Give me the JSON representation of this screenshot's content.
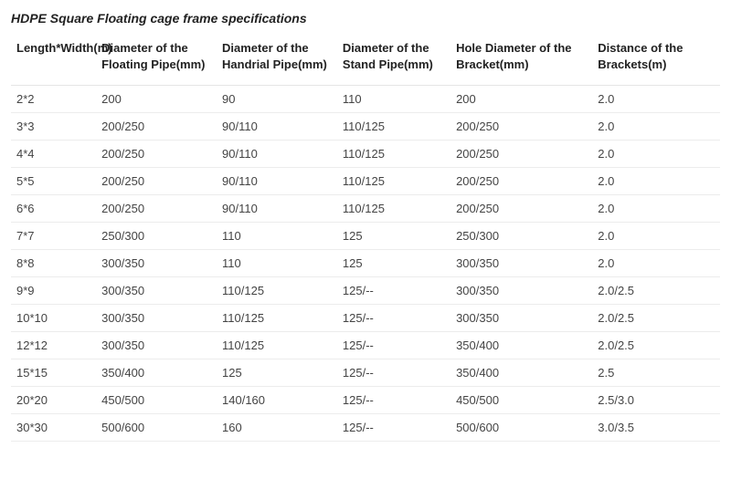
{
  "title": "HDPE Square Floating cage frame specifications",
  "table": {
    "type": "table",
    "background_color": "#ffffff",
    "grid_color": "#ececec",
    "header_text_color": "#222222",
    "cell_text_color": "#444444",
    "font_size_pt": 10,
    "header_font_weight": "600",
    "columns": [
      {
        "label": "Length*Width(m)",
        "width_pct": 12,
        "align": "left"
      },
      {
        "label": "Diameter of the Floating Pipe(mm)",
        "width_pct": 17,
        "align": "left"
      },
      {
        "label": "Diameter of the Handrial Pipe(mm)",
        "width_pct": 17,
        "align": "left"
      },
      {
        "label": "Diameter of the Stand Pipe(mm)",
        "width_pct": 16,
        "align": "left"
      },
      {
        "label": "Hole Diameter of the Bracket(mm)",
        "width_pct": 20,
        "align": "left"
      },
      {
        "label": "Distance of the Brackets(m)",
        "width_pct": 18,
        "align": "left"
      }
    ],
    "rows": [
      [
        "2*2",
        "200",
        "90",
        "110",
        "200",
        "2.0"
      ],
      [
        "3*3",
        "200/250",
        "90/110",
        "110/125",
        "200/250",
        "2.0"
      ],
      [
        "4*4",
        "200/250",
        "90/110",
        "110/125",
        "200/250",
        "2.0"
      ],
      [
        "5*5",
        "200/250",
        "90/110",
        "110/125",
        "200/250",
        "2.0"
      ],
      [
        "6*6",
        "200/250",
        "90/110",
        "110/125",
        "200/250",
        "2.0"
      ],
      [
        "7*7",
        "250/300",
        "110",
        "125",
        "250/300",
        "2.0"
      ],
      [
        "8*8",
        "300/350",
        "110",
        "125",
        "300/350",
        "2.0"
      ],
      [
        "9*9",
        "300/350",
        "110/125",
        "125/--",
        "300/350",
        "2.0/2.5"
      ],
      [
        "10*10",
        "300/350",
        "110/125",
        "125/--",
        "300/350",
        "2.0/2.5"
      ],
      [
        "12*12",
        "300/350",
        "110/125",
        "125/--",
        "350/400",
        "2.0/2.5"
      ],
      [
        "15*15",
        "350/400",
        "125",
        "125/--",
        "350/400",
        "2.5"
      ],
      [
        "20*20",
        "450/500",
        "140/160",
        "125/--",
        "450/500",
        "2.5/3.0"
      ],
      [
        "30*30",
        "500/600",
        "160",
        "125/--",
        "500/600",
        "3.0/3.5"
      ]
    ]
  }
}
